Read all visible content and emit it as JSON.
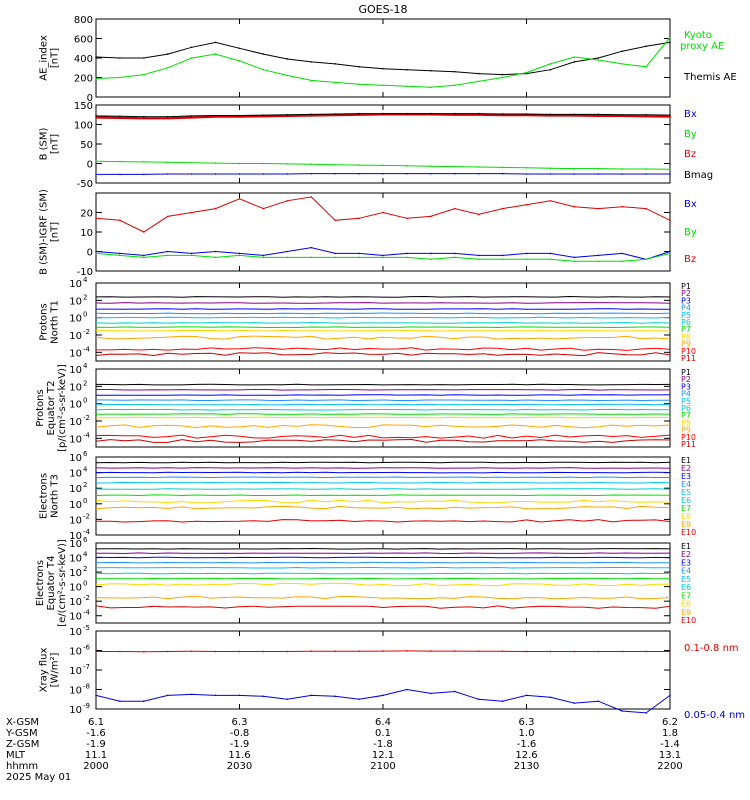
{
  "title": "GOES-18",
  "colors": {
    "black": "#000000",
    "blue": "#0000dd",
    "green": "#00dd00",
    "red": "#dd0000",
    "p": [
      "#000000",
      "#8b008b",
      "#0000ff",
      "#1e90ff",
      "#00bfff",
      "#00ced1",
      "#00e000",
      "#ffd700",
      "#ffa500",
      "#ff0000",
      "#cc0000"
    ],
    "e": [
      "#000000",
      "#8b008b",
      "#0000ff",
      "#1e90ff",
      "#00bfff",
      "#00ced1",
      "#00e000",
      "#ffd700",
      "#ffa500",
      "#dd0000",
      "#cc0000"
    ]
  },
  "time_axis": {
    "rows": [
      {
        "label": "X-GSM",
        "values": [
          "6.1",
          "6.3",
          "6.4",
          "6.3",
          "6.2"
        ]
      },
      {
        "label": "Y-GSM",
        "values": [
          "-1.6",
          "-0.8",
          "0.1",
          "1.0",
          "1.8"
        ]
      },
      {
        "label": "Z-GSM",
        "values": [
          "-1.9",
          "-1.9",
          "-1.8",
          "-1.6",
          "-1.4"
        ]
      },
      {
        "label": "MLT",
        "values": [
          "11.1",
          "11.6",
          "12.1",
          "12.6",
          "13.1"
        ]
      },
      {
        "label": "hhmm",
        "values": [
          "2000",
          "2030",
          "2100",
          "2130",
          "2200"
        ]
      }
    ],
    "date": "2025 May 01"
  },
  "chart_data": [
    {
      "type": "line",
      "key": "ae",
      "ylabel": [
        "AE_index",
        "[nT]"
      ],
      "ylim": [
        0,
        800
      ],
      "yticks": [
        "0",
        "200",
        "400",
        "600",
        "800"
      ],
      "x": [
        0,
        5,
        10,
        15,
        20,
        25,
        30,
        35,
        40,
        45,
        50,
        55,
        60,
        65,
        70,
        75,
        80,
        85,
        90,
        95,
        100,
        105,
        110,
        115,
        120
      ],
      "series": [
        {
          "name": "Themis AE",
          "color": "#000000",
          "values": [
            410,
            400,
            400,
            440,
            510,
            560,
            500,
            440,
            390,
            360,
            340,
            310,
            290,
            280,
            270,
            260,
            240,
            230,
            240,
            280,
            360,
            400,
            470,
            520,
            560
          ]
        },
        {
          "name": "Kyoto proxy AE",
          "color": "#00dd00",
          "values": [
            190,
            200,
            230,
            300,
            400,
            440,
            370,
            280,
            220,
            170,
            150,
            130,
            120,
            110,
            100,
            120,
            160,
            200,
            250,
            340,
            410,
            380,
            340,
            310,
            610
          ]
        }
      ],
      "legend": [
        {
          "text": "Kyoto",
          "color": "#00dd00"
        },
        {
          "text": "proxy AE",
          "color": "#00dd00"
        },
        {
          "text": "Themis AE",
          "color": "#000000"
        }
      ]
    },
    {
      "type": "line",
      "key": "bsm",
      "ylabel": [
        "B (SM)",
        "[nT]"
      ],
      "ylim": [
        -50,
        150
      ],
      "yticks": [
        "-50",
        "0",
        "50",
        "100",
        "150"
      ],
      "x": [
        0,
        5,
        10,
        15,
        20,
        25,
        30,
        35,
        40,
        45,
        50,
        55,
        60,
        65,
        70,
        75,
        80,
        85,
        90,
        95,
        100,
        105,
        110,
        115,
        120
      ],
      "series": [
        {
          "name": "Bx",
          "color": "#0000dd",
          "values": [
            -28,
            -28,
            -28,
            -27,
            -27,
            -27,
            -27,
            -27,
            -27,
            -26,
            -26,
            -26,
            -26,
            -26,
            -26,
            -26,
            -26,
            -26,
            -27,
            -27,
            -27,
            -27,
            -27,
            -27,
            -27
          ]
        },
        {
          "name": "By",
          "color": "#00dd00",
          "values": [
            6,
            5,
            4,
            3,
            2,
            1,
            0,
            0,
            -1,
            -2,
            -3,
            -4,
            -5,
            -6,
            -7,
            -8,
            -9,
            -10,
            -11,
            -12,
            -13,
            -13,
            -14,
            -14,
            -15
          ]
        },
        {
          "name": "Bz",
          "color": "#dd0000",
          "values": [
            118,
            117,
            116,
            116,
            118,
            120,
            120,
            121,
            122,
            123,
            124,
            125,
            126,
            126,
            126,
            125,
            125,
            124,
            124,
            123,
            123,
            122,
            122,
            121,
            120
          ]
        },
        {
          "name": "Bmag",
          "color": "#000000",
          "values": [
            122,
            121,
            120,
            120,
            122,
            123,
            123,
            124,
            125,
            126,
            127,
            128,
            128,
            128,
            128,
            128,
            128,
            127,
            127,
            126,
            126,
            126,
            125,
            125,
            124
          ]
        }
      ],
      "legend": [
        {
          "text": "Bx",
          "color": "#0000dd"
        },
        {
          "text": "By",
          "color": "#00dd00"
        },
        {
          "text": "Bz",
          "color": "#dd0000"
        },
        {
          "text": "Bmag",
          "color": "#000000"
        }
      ]
    },
    {
      "type": "line",
      "key": "bigrf",
      "ylabel": [
        "B (SM)-IGRF (SM)",
        "[nT]"
      ],
      "ylim": [
        -10,
        30
      ],
      "yticks": [
        "-10",
        "0",
        "10",
        "20"
      ],
      "x": [
        0,
        5,
        10,
        15,
        20,
        25,
        30,
        35,
        40,
        45,
        50,
        55,
        60,
        65,
        70,
        75,
        80,
        85,
        90,
        95,
        100,
        105,
        110,
        115,
        120
      ],
      "series": [
        {
          "name": "Bx",
          "color": "#0000dd",
          "values": [
            0,
            -1,
            -2,
            0,
            -1,
            0,
            -1,
            -2,
            0,
            2,
            -1,
            -1,
            -2,
            -1,
            -1,
            -1,
            -2,
            -2,
            -1,
            -1,
            -3,
            -2,
            -1,
            -4,
            0
          ]
        },
        {
          "name": "By",
          "color": "#00dd00",
          "values": [
            -1,
            -2,
            -3,
            -2,
            -2,
            -3,
            -2,
            -3,
            -3,
            -3,
            -3,
            -3,
            -3,
            -3,
            -4,
            -3,
            -4,
            -4,
            -4,
            -4,
            -5,
            -5,
            -5,
            -4,
            -1
          ]
        },
        {
          "name": "Bz",
          "color": "#dd0000",
          "values": [
            17,
            16,
            10,
            18,
            20,
            22,
            27,
            22,
            26,
            28,
            16,
            17,
            20,
            17,
            18,
            22,
            19,
            22,
            24,
            26,
            23,
            22,
            23,
            22,
            16
          ]
        }
      ],
      "legend": [
        {
          "text": "Bx",
          "color": "#0000dd"
        },
        {
          "text": "By",
          "color": "#00dd00"
        },
        {
          "text": "Bz",
          "color": "#dd0000"
        }
      ]
    },
    {
      "type": "line",
      "key": "pn",
      "log": true,
      "ylabel": [
        "Protons",
        "North T1"
      ],
      "ylim": [
        -5,
        4
      ],
      "yticks": [
        {
          "base": "10",
          "exp": "4",
          "v": 4
        },
        {
          "base": "10",
          "exp": "2",
          "v": 2
        },
        {
          "base": "10",
          "exp": "0",
          "v": 0
        },
        {
          "base": "10",
          "exp": "-2",
          "v": -2
        },
        {
          "base": "10",
          "exp": "-4",
          "v": -4
        }
      ],
      "channels": [
        "P1",
        "P2",
        "P3",
        "P4",
        "P5",
        "P6",
        "P7",
        "P8",
        "P9",
        "P10",
        "P11"
      ],
      "levels": [
        2.4,
        1.7,
        1.0,
        0.5,
        0.0,
        -0.6,
        -1.1,
        -1.5,
        -2.3,
        -3.6,
        -4.2
      ]
    },
    {
      "type": "line",
      "key": "pe",
      "log": true,
      "ylabel": [
        "Protons",
        "Equator T2",
        "[p/(cm²-s-sr-keV)]"
      ],
      "ylim": [
        -5,
        4
      ],
      "yticks": [
        {
          "base": "10",
          "exp": "4",
          "v": 4
        },
        {
          "base": "10",
          "exp": "2",
          "v": 2
        },
        {
          "base": "10",
          "exp": "0",
          "v": 0
        },
        {
          "base": "10",
          "exp": "-2",
          "v": -2
        },
        {
          "base": "10",
          "exp": "-4",
          "v": -4
        }
      ],
      "channels": [
        "P1",
        "P2",
        "P3",
        "P4",
        "P5",
        "P6",
        "P7",
        "P8",
        "P9",
        "P10",
        "P11"
      ],
      "levels": [
        2.2,
        1.6,
        1.0,
        0.4,
        -0.1,
        -0.7,
        -1.2,
        -1.6,
        -2.6,
        -3.8,
        -4.3
      ]
    },
    {
      "type": "line",
      "key": "en",
      "log": true,
      "ylabel": [
        "Electrons",
        "North T3"
      ],
      "ylim": [
        -4,
        6
      ],
      "yticks": [
        {
          "base": "10",
          "exp": "6",
          "v": 6
        },
        {
          "base": "10",
          "exp": "4",
          "v": 4
        },
        {
          "base": "10",
          "exp": "2",
          "v": 2
        },
        {
          "base": "10",
          "exp": "0",
          "v": 0
        },
        {
          "base": "10",
          "exp": "-2",
          "v": -2
        },
        {
          "base": "10",
          "exp": "-4",
          "v": -4
        }
      ],
      "channels": [
        "E1",
        "E2",
        "E3",
        "E4",
        "E5",
        "E6",
        "E7",
        "E8",
        "E9",
        "E10"
      ],
      "levels": [
        5.3,
        4.6,
        4.0,
        3.4,
        2.7,
        1.9,
        1.1,
        0.3,
        -0.5,
        -2.2
      ]
    },
    {
      "type": "line",
      "key": "ee",
      "log": true,
      "ylabel": [
        "Electrons",
        "Equator T4",
        "[e/(cm²-s-sr-keV)]"
      ],
      "ylim": [
        -5,
        6
      ],
      "yticks": [
        {
          "base": "10",
          "exp": "6",
          "v": 6
        },
        {
          "base": "10",
          "exp": "4",
          "v": 4
        },
        {
          "base": "10",
          "exp": "2",
          "v": 2
        },
        {
          "base": "10",
          "exp": "0",
          "v": 0
        },
        {
          "base": "10",
          "exp": "-2",
          "v": -2
        },
        {
          "base": "10",
          "exp": "-4",
          "v": -4
        }
      ],
      "channels": [
        "E1",
        "E2",
        "E3",
        "E4",
        "E5",
        "E6",
        "E7",
        "E8",
        "E9",
        "E10"
      ],
      "levels": [
        5.2,
        4.6,
        4.0,
        3.3,
        2.6,
        1.8,
        1.1,
        0.3,
        -1.5,
        -2.8
      ]
    },
    {
      "type": "line",
      "key": "xray",
      "log": true,
      "ylabel": [
        "Xray flux",
        "[W/m²]"
      ],
      "ylim": [
        -9,
        -5
      ],
      "yticks": [
        {
          "base": "10",
          "exp": "-5",
          "v": -5
        },
        {
          "base": "10",
          "exp": "-6",
          "v": -6
        },
        {
          "base": "10",
          "exp": "-7",
          "v": -7
        },
        {
          "base": "10",
          "exp": "-8",
          "v": -8
        },
        {
          "base": "10",
          "exp": "-9",
          "v": -9
        }
      ],
      "x": [
        0,
        5,
        10,
        15,
        20,
        25,
        30,
        35,
        40,
        45,
        50,
        55,
        60,
        65,
        70,
        75,
        80,
        85,
        90,
        95,
        100,
        105,
        110,
        115,
        120
      ],
      "series": [
        {
          "name": "0.1-0.8 nm",
          "color": "#dd0000",
          "values": [
            -6.05,
            -6.05,
            -6.06,
            -6.05,
            -6.04,
            -6.05,
            -6.05,
            -6.05,
            -6.05,
            -6.04,
            -6.04,
            -6.04,
            -6.03,
            -6.02,
            -6.03,
            -6.03,
            -6.04,
            -6.04,
            -6.05,
            -6.05,
            -6.05,
            -6.05,
            -6.05,
            -6.05,
            -6.05
          ]
        },
        {
          "name": "0.05-0.4 nm",
          "color": "#0000dd",
          "values": [
            -8.3,
            -8.6,
            -8.6,
            -8.3,
            -8.25,
            -8.3,
            -8.3,
            -8.35,
            -8.5,
            -8.3,
            -8.35,
            -8.5,
            -8.3,
            -8.0,
            -8.2,
            -8.1,
            -8.5,
            -8.6,
            -8.3,
            -8.4,
            -8.7,
            -8.6,
            -9.1,
            -9.2,
            -8.3
          ]
        }
      ],
      "legend": [
        {
          "text": "0.1-0.8 nm",
          "color": "#dd0000"
        },
        {
          "text": "0.05-0.4 nm",
          "color": "#0000dd"
        }
      ]
    }
  ]
}
